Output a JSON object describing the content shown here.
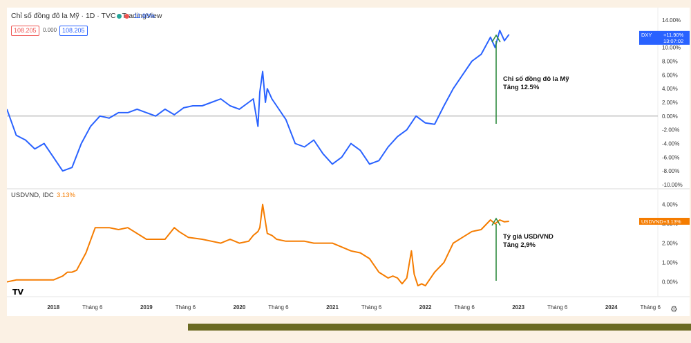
{
  "header": {
    "title": "Chỉ số đồng đô la Mỹ · 1D · TVC · TradingView",
    "change_pct": "11.90%",
    "sell_price": "108.205",
    "spread": "0.000",
    "buy_price": "108.205"
  },
  "pane2_header": {
    "label": "USDVND, IDC",
    "change_pct": "3.13%"
  },
  "chart_data": [
    {
      "type": "line",
      "series": [
        {
          "name": "DXY",
          "color": "#2962ff",
          "x": [
            2017.5,
            2017.6,
            2017.7,
            2017.8,
            2017.9,
            2018.0,
            2018.1,
            2018.2,
            2018.3,
            2018.4,
            2018.5,
            2018.6,
            2018.7,
            2018.8,
            2018.9,
            2019.0,
            2019.1,
            2019.2,
            2019.3,
            2019.4,
            2019.5,
            2019.6,
            2019.7,
            2019.8,
            2019.9,
            2020.0,
            2020.1,
            2020.15,
            2020.2,
            2020.22,
            2020.25,
            2020.28,
            2020.3,
            2020.35,
            2020.4,
            2020.5,
            2020.6,
            2020.7,
            2020.8,
            2020.9,
            2021.0,
            2021.1,
            2021.2,
            2021.3,
            2021.4,
            2021.5,
            2021.6,
            2021.7,
            2021.8,
            2021.9,
            2022.0,
            2022.1,
            2022.2,
            2022.3,
            2022.4,
            2022.5,
            2022.6,
            2022.7,
            2022.75,
            2022.8,
            2022.85,
            2022.9
          ],
          "values": [
            1.0,
            -2.8,
            -3.5,
            -4.8,
            -4.0,
            -6.0,
            -8.0,
            -7.5,
            -4.0,
            -1.5,
            0.0,
            -0.3,
            0.5,
            0.5,
            1.0,
            0.5,
            0.0,
            1.0,
            0.2,
            1.2,
            1.5,
            1.5,
            2.0,
            2.5,
            1.5,
            1.0,
            2.0,
            2.5,
            -1.5,
            3.5,
            6.5,
            2.0,
            4.0,
            2.5,
            1.5,
            -0.5,
            -4.0,
            -4.5,
            -3.5,
            -5.5,
            -7.0,
            -6.0,
            -4.0,
            -5.0,
            -7.0,
            -6.5,
            -4.5,
            -3.0,
            -2.0,
            0.0,
            -1.0,
            -1.2,
            1.5,
            4.0,
            6.0,
            8.0,
            9.0,
            11.5,
            10.0,
            12.5,
            11.0,
            11.9
          ]
        }
      ],
      "xlim": [
        2017.5,
        2024.5
      ],
      "ylim": [
        -10,
        14
      ],
      "yticks": [
        "14.00%",
        "12.00%",
        "10.00%",
        "8.00%",
        "6.00%",
        "4.00%",
        "2.00%",
        "0.00%",
        "-2.00%",
        "-4.00%",
        "-6.00%",
        "-8.00%",
        "-10.00%"
      ],
      "last_label": "DXY",
      "last_value": "+11.90%",
      "last_time": "13:07:02",
      "zero_line": true,
      "grid": false,
      "annotation": {
        "line1": "Chỉ số đồng đô la Mỹ",
        "line2": "Tăng 12.5%"
      }
    },
    {
      "type": "line",
      "series": [
        {
          "name": "USDVND",
          "color": "#f57c00",
          "x": [
            2017.5,
            2017.6,
            2017.7,
            2017.8,
            2017.9,
            2018.0,
            2018.05,
            2018.1,
            2018.15,
            2018.2,
            2018.25,
            2018.35,
            2018.45,
            2018.6,
            2018.7,
            2018.8,
            2019.0,
            2019.2,
            2019.3,
            2019.35,
            2019.45,
            2019.6,
            2019.7,
            2019.8,
            2019.9,
            2020.0,
            2020.1,
            2020.15,
            2020.2,
            2020.22,
            2020.25,
            2020.3,
            2020.35,
            2020.4,
            2020.5,
            2020.6,
            2020.7,
            2020.8,
            2020.9,
            2021.0,
            2021.1,
            2021.2,
            2021.3,
            2021.4,
            2021.5,
            2021.6,
            2021.65,
            2021.7,
            2021.75,
            2021.8,
            2021.85,
            2021.88,
            2021.92,
            2021.96,
            2022.0,
            2022.1,
            2022.2,
            2022.3,
            2022.4,
            2022.5,
            2022.6,
            2022.7,
            2022.75,
            2022.8,
            2022.85,
            2022.9
          ],
          "values": [
            0.0,
            0.1,
            0.1,
            0.1,
            0.1,
            0.1,
            0.2,
            0.3,
            0.5,
            0.5,
            0.6,
            1.5,
            2.8,
            2.8,
            2.7,
            2.8,
            2.2,
            2.2,
            2.8,
            2.6,
            2.3,
            2.2,
            2.1,
            2.0,
            2.2,
            2.0,
            2.1,
            2.4,
            2.6,
            2.8,
            4.0,
            2.5,
            2.4,
            2.2,
            2.1,
            2.1,
            2.1,
            2.0,
            2.0,
            2.0,
            1.8,
            1.6,
            1.5,
            1.2,
            0.5,
            0.2,
            0.3,
            0.2,
            -0.1,
            0.2,
            1.6,
            0.4,
            -0.2,
            -0.1,
            -0.2,
            0.5,
            1.0,
            2.0,
            2.3,
            2.6,
            2.7,
            3.2,
            3.0,
            3.2,
            3.1,
            3.13
          ]
        }
      ],
      "xlim": [
        2017.5,
        2024.5
      ],
      "ylim": [
        -0.3,
        4.2
      ],
      "yticks": [
        "4.00%",
        "3.00%",
        "2.00%",
        "1.00%",
        "0.00%"
      ],
      "last_label": "USDVND",
      "last_value": "+3.13%",
      "annotation": {
        "line1": "Tỷ giá USD/VND",
        "line2": "Tăng 2,9%"
      }
    }
  ],
  "x_axis": {
    "labels": [
      {
        "text": "2018",
        "x": 2018.0,
        "bold": true
      },
      {
        "text": "Tháng 6",
        "x": 2018.42
      },
      {
        "text": "2019",
        "x": 2019.0,
        "bold": true
      },
      {
        "text": "Tháng 6",
        "x": 2019.42
      },
      {
        "text": "2020",
        "x": 2020.0,
        "bold": true
      },
      {
        "text": "Tháng 6",
        "x": 2020.42
      },
      {
        "text": "2021",
        "x": 2021.0,
        "bold": true
      },
      {
        "text": "Tháng 6",
        "x": 2021.42
      },
      {
        "text": "2022",
        "x": 2022.0,
        "bold": true
      },
      {
        "text": "Tháng 6",
        "x": 2022.42
      },
      {
        "text": "2023",
        "x": 2023.0,
        "bold": true
      },
      {
        "text": "Tháng 6",
        "x": 2023.42
      },
      {
        "text": "2024",
        "x": 2024.0,
        "bold": true
      },
      {
        "text": "Tháng 6",
        "x": 2024.42
      }
    ]
  },
  "icons": {
    "logo": "tradingview-logo-icon",
    "settings": "gear-icon"
  }
}
